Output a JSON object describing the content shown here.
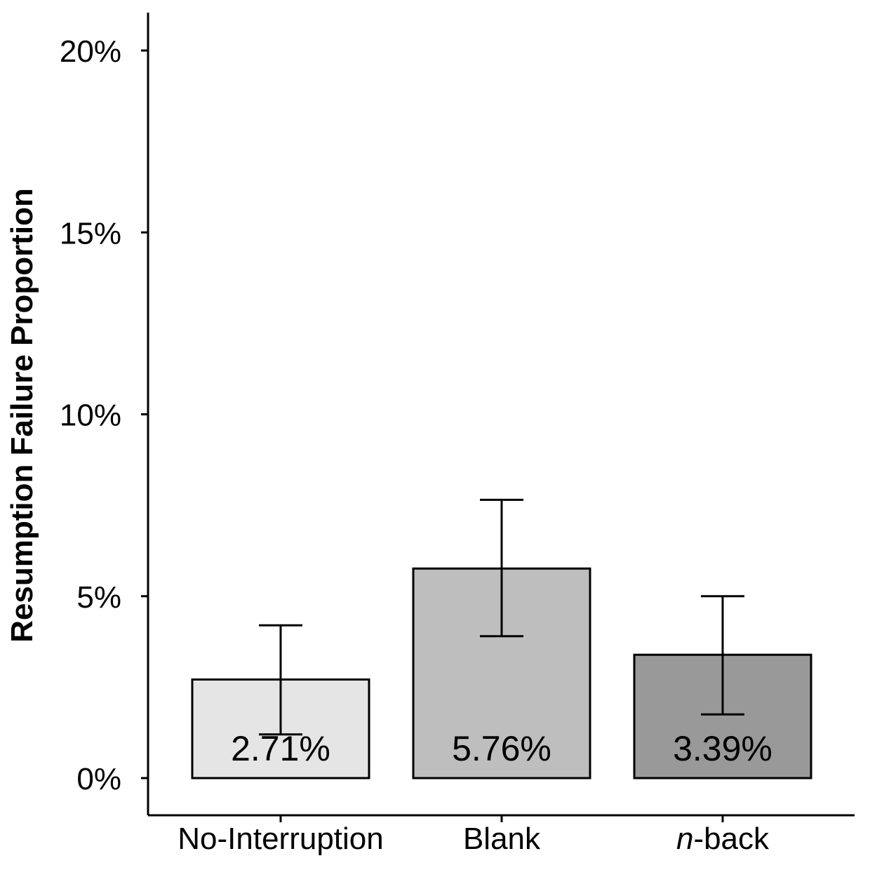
{
  "chart_data": {
    "type": "bar",
    "categories": [
      {
        "label": "No-Interruption",
        "italic_prefix": ""
      },
      {
        "label": "-back",
        "italic_prefix": "n"
      },
      {
        "label": "Blank",
        "italic_prefix": ""
      }
    ],
    "order": [
      0,
      2,
      1
    ],
    "values": [
      2.71,
      5.76,
      3.39
    ],
    "value_labels": [
      "2.71%",
      "5.76%",
      "3.39%"
    ],
    "error_bars": [
      {
        "low": 1.2,
        "high": 4.2
      },
      {
        "low": 3.9,
        "high": 7.65
      },
      {
        "low": 1.75,
        "high": 5.0
      }
    ],
    "fill_colors": [
      "#e5e5e5",
      "#bebebe",
      "#999999"
    ],
    "ylabel": "Resumption Failure Proportion",
    "xlabel": "",
    "title": "",
    "ylim": [
      -1,
      21
    ],
    "yticks": [
      0,
      5,
      10,
      15,
      20
    ],
    "ytick_labels": [
      "0%",
      "5%",
      "10%",
      "15%",
      "20%"
    ],
    "grid": false,
    "legend": "none"
  }
}
